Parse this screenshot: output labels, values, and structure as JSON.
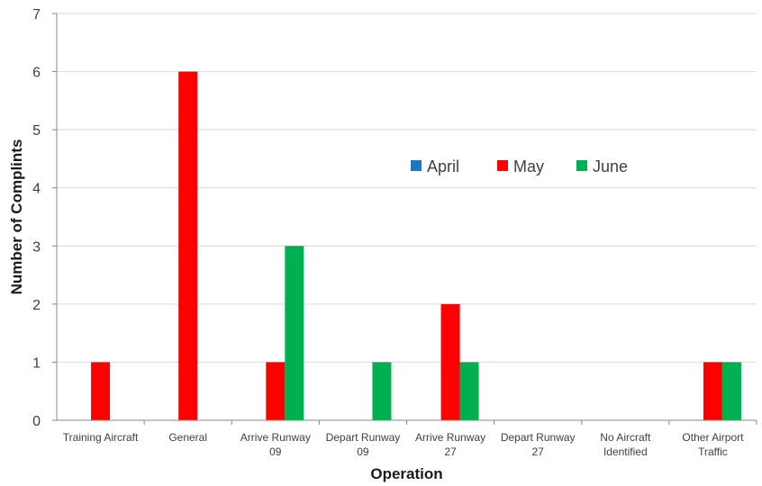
{
  "chart_data": {
    "type": "bar",
    "title": "",
    "xlabel": "Operation",
    "ylabel": "Number of Complints",
    "ylim": [
      0,
      7
    ],
    "yticks": [
      0,
      1,
      2,
      3,
      4,
      5,
      6,
      7
    ],
    "grid": true,
    "legend_position": "center-right",
    "categories": [
      [
        "Training Aircraft"
      ],
      [
        "General"
      ],
      [
        "Arrive Runway",
        "09"
      ],
      [
        "Depart Runway",
        "09"
      ],
      [
        "Arrive Runway",
        "27"
      ],
      [
        "Depart Runway",
        "27"
      ],
      [
        "No Aircraft",
        "Identified"
      ],
      [
        "Other Airport",
        "Traffic"
      ]
    ],
    "series": [
      {
        "name": "April",
        "color": "#1f77c4",
        "values": [
          0,
          0,
          0,
          0,
          0,
          0,
          0,
          0
        ]
      },
      {
        "name": "May",
        "color": "#ff0000",
        "values": [
          1,
          6,
          1,
          0,
          2,
          0,
          0,
          1
        ]
      },
      {
        "name": "June",
        "color": "#00b050",
        "values": [
          0,
          0,
          3,
          1,
          1,
          0,
          0,
          1
        ]
      }
    ]
  }
}
